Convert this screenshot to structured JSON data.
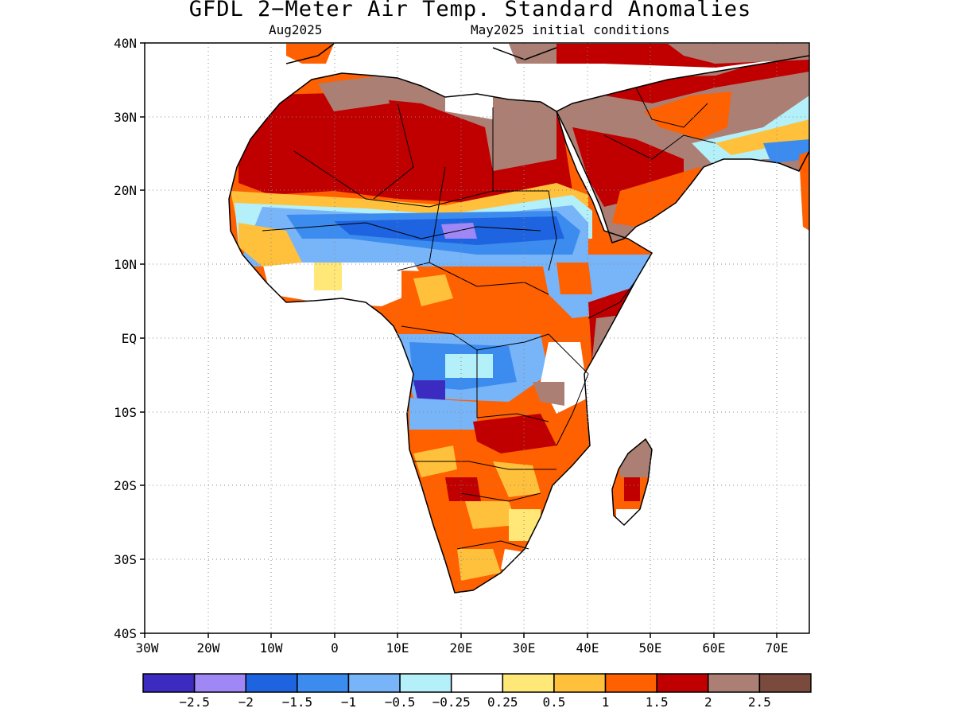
{
  "title": "GFDL 2−Meter Air Temp. Standard Anomalies",
  "valid_month": "Aug2025",
  "initial_conditions": "May2025 initial conditions",
  "lat_labels": [
    "40N",
    "30N",
    "20N",
    "10N",
    "EQ",
    "10S",
    "20S",
    "30S",
    "40S"
  ],
  "lon_labels": [
    "30W",
    "20W",
    "10W",
    "0",
    "10E",
    "20E",
    "30E",
    "40E",
    "50E",
    "60E",
    "70E"
  ],
  "colorbar": {
    "colors": [
      "#3c2bc0",
      "#9f87f5",
      "#1e64e0",
      "#3c8cf0",
      "#78b4f8",
      "#b4f0fa",
      "#ffffff",
      "#ffe878",
      "#ffc03c",
      "#ff6000",
      "#c00000",
      "#ab7f74",
      "#7a4a3c"
    ],
    "labels": [
      "−2.5",
      "−2",
      "−1.5",
      "−1",
      "−0.5",
      "−0.25",
      "0.25",
      "0.5",
      "1",
      "1.5",
      "2",
      "2.5"
    ]
  },
  "map_bounds": {
    "lon_min": -30,
    "lon_max": 75,
    "lat_min": -40,
    "lat_max": 40
  }
}
